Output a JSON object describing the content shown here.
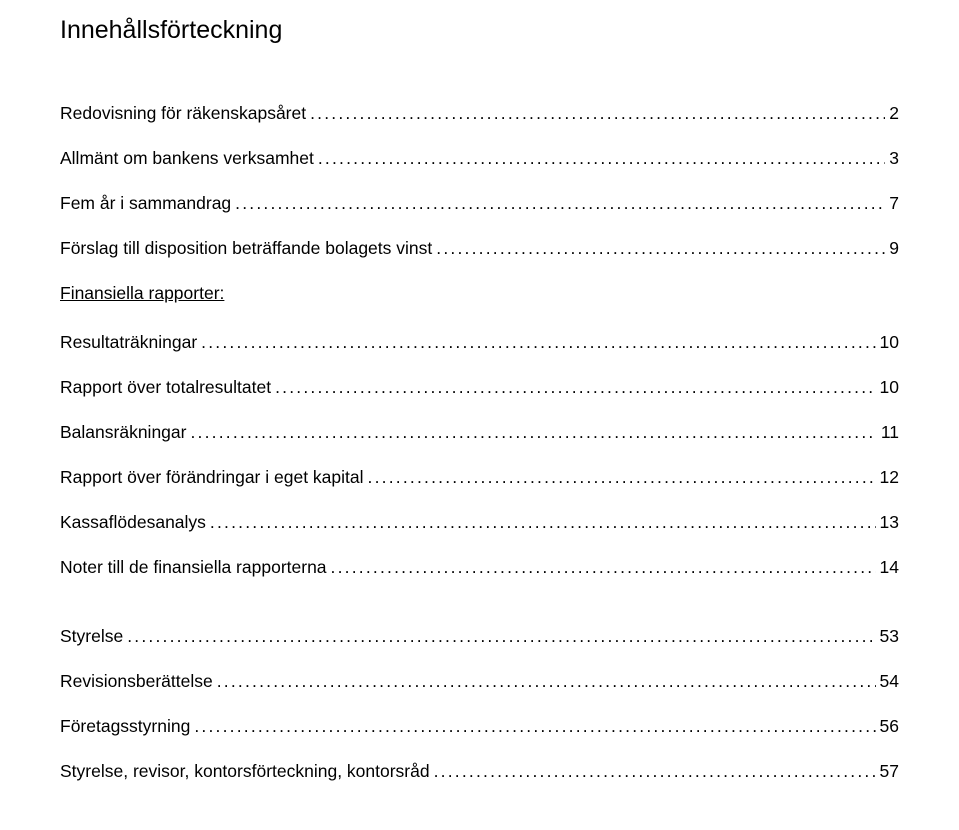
{
  "title": "Innehållsförteckning",
  "sections_header": "Finansiella rapporter:",
  "toc_before": [
    {
      "label": "Redovisning för räkenskapsåret",
      "page": "2"
    },
    {
      "label": "Allmänt om bankens verksamhet",
      "page": "3"
    },
    {
      "label": "Fem år i sammandrag",
      "page": "7"
    },
    {
      "label": "Förslag till disposition beträffande bolagets vinst",
      "page": "9"
    }
  ],
  "toc_financial": [
    {
      "label": "Resultaträkningar",
      "page": "10"
    },
    {
      "label": "Rapport över totalresultatet",
      "page": "10"
    },
    {
      "label": "Balansräkningar",
      "page": "11"
    },
    {
      "label": "Rapport över förändringar i eget kapital",
      "page": "12"
    },
    {
      "label": "Kassaflödesanalys",
      "page": "13"
    },
    {
      "label": "Noter till de finansiella rapporterna",
      "page": "14"
    }
  ],
  "toc_after": [
    {
      "label": "Styrelse",
      "page": "53"
    },
    {
      "label": "Revisionsberättelse",
      "page": "54"
    },
    {
      "label": "Företagsstyrning",
      "page": "56"
    },
    {
      "label": "Styrelse, revisor, kontorsförteckning, kontorsråd",
      "page": "57"
    }
  ],
  "colors": {
    "text": "#000000",
    "background": "#ffffff"
  },
  "fonts": {
    "family": "Arial",
    "title_size_pt": 19,
    "body_size_pt": 13
  }
}
